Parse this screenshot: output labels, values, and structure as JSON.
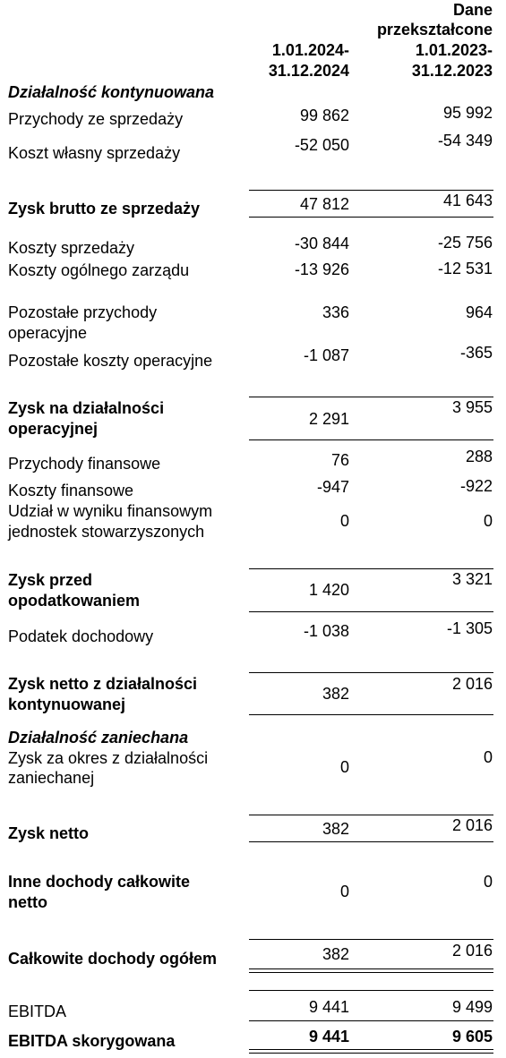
{
  "header": {
    "col2_line1": "Dane",
    "col2_line2": "przekształcone",
    "col1_line1": "1.01.2024-",
    "col1_line2": "31.12.2024",
    "col2_line3": "1.01.2023-",
    "col2_line4": "31.12.2023"
  },
  "rows": {
    "sec_cont": "Działalność kontynuowana",
    "revenue": {
      "label": "Przychody ze sprzedaży",
      "v1": "99 862",
      "v2": "95 992"
    },
    "cogs": {
      "label": "Koszt własny sprzedaży",
      "v1": "-52 050",
      "v2": "-54 349"
    },
    "gross": {
      "label": "Zysk  brutto ze sprzedaży",
      "v1": "47 812",
      "v2": "41 643"
    },
    "selling": {
      "label": "Koszty sprzedaży",
      "v1": "-30 844",
      "v2": "-25 756"
    },
    "admin": {
      "label": "Koszty ogólnego zarządu",
      "v1": "-13 926",
      "v2": "-12 531"
    },
    "other_inc": {
      "label1": "Pozostałe przychody",
      "label2": "operacyjne",
      "v1": "336",
      "v2": "964"
    },
    "other_exp": {
      "label": "Pozostałe koszty operacyjne",
      "v1": "-1 087",
      "v2": "-365"
    },
    "op_profit": {
      "label1": "Zysk na działalności",
      "label2": "operacyjnej",
      "v1": "2 291",
      "v2": "3 955"
    },
    "fin_inc": {
      "label": "Przychody finansowe",
      "v1": "76",
      "v2": "288"
    },
    "fin_exp": {
      "label": "Koszty finansowe",
      "v1": "-947",
      "v2": "-922"
    },
    "assoc": {
      "label1": "Udział w wyniku finansowym",
      "label2": "jednostek stowarzyszonych",
      "v1": "0",
      "v2": "0"
    },
    "pretax": {
      "label1": "Zysk przed",
      "label2": "opodatkowaniem",
      "v1": "1 420",
      "v2": "3 321"
    },
    "tax": {
      "label": "Podatek dochodowy",
      "v1": "-1 038",
      "v2": "-1 305"
    },
    "net_cont": {
      "label1": "Zysk netto z działalności",
      "label2": "kontynuowanej",
      "v1": "382",
      "v2": "2 016"
    },
    "sec_disc": "Działalność zaniechana",
    "disc": {
      "label1": "Zysk za okres z działalności",
      "label2": "zaniechanej",
      "v1": "0",
      "v2": "0"
    },
    "net": {
      "label": "Zysk netto",
      "v1": "382",
      "v2": "2 016"
    },
    "oci": {
      "label1": "Inne dochody całkowite",
      "label2": "netto",
      "v1": "0",
      "v2": "0"
    },
    "total_ci": {
      "label": "Całkowite dochody ogółem",
      "v1": "382",
      "v2": "2 016"
    },
    "ebitda": {
      "label": "EBITDA",
      "v1": "9 441",
      "v2": "9 499"
    },
    "ebitda_adj": {
      "label": "EBITDA skorygowana",
      "v1": "9 441",
      "v2": "9 605"
    }
  }
}
